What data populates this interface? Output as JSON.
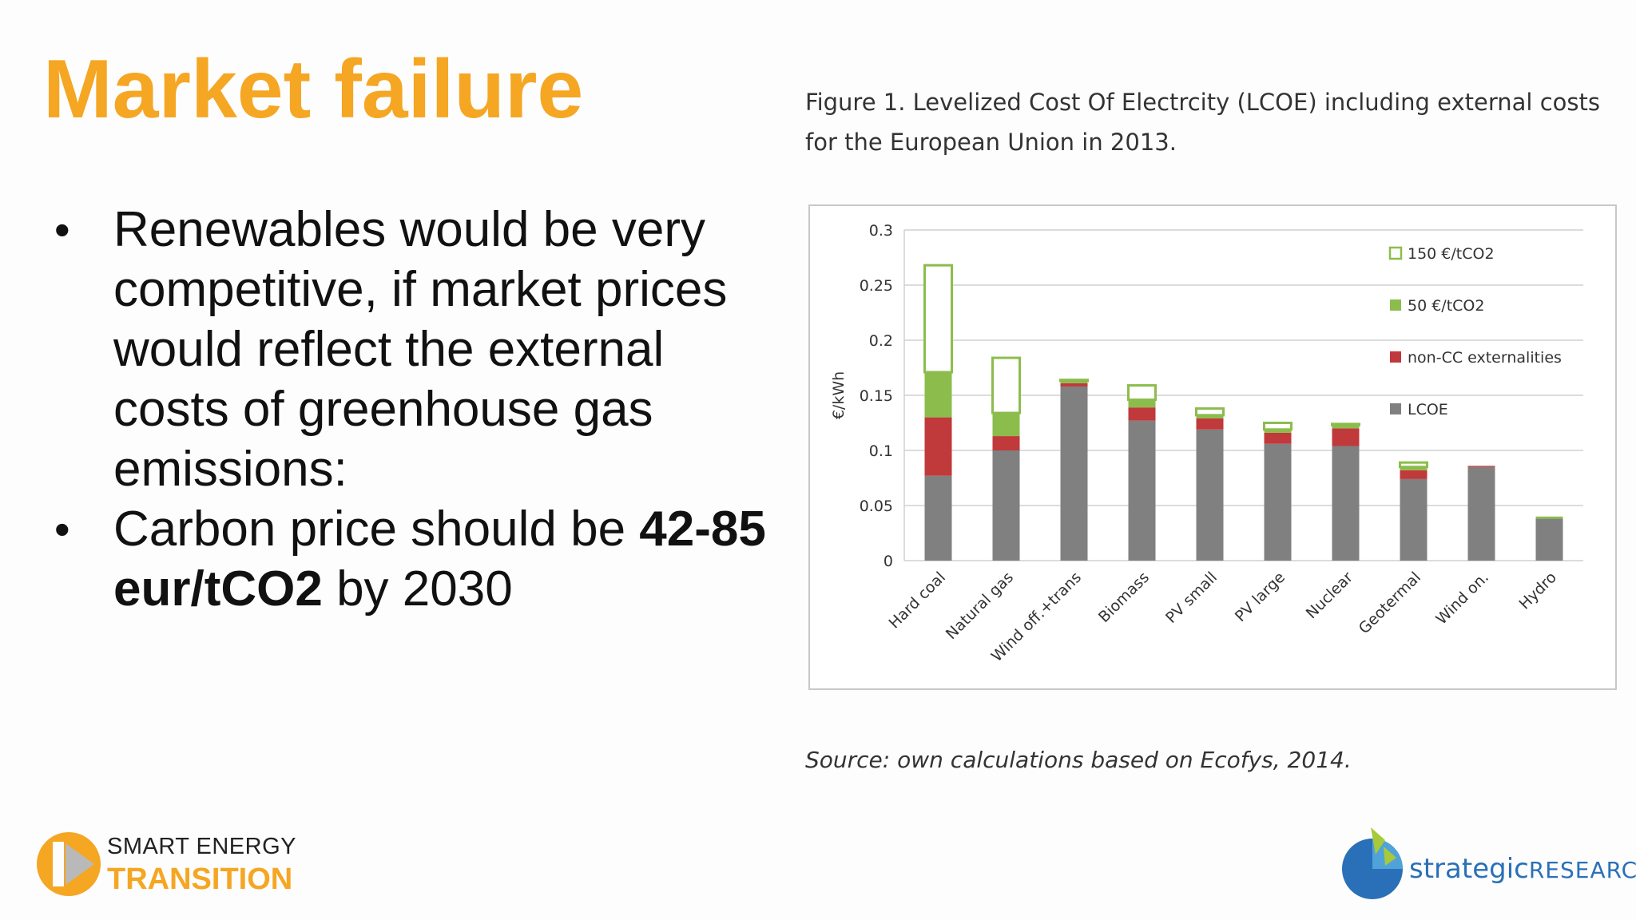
{
  "slide": {
    "title": "Market failure",
    "bullets": [
      {
        "text": "Renewables would be very competitive, if market prices would reflect the external costs of greenhouse gas emissions:"
      },
      {
        "text_before": "Carbon price should be ",
        "bold": "42-85 eur/tCO2",
        "text_after": " by 2030"
      }
    ],
    "figure_caption": "Figure 1. Levelized Cost Of Electrcity (LCOE) including external costs for the European Union in 2013.",
    "figure_source": "Source: own calculations based on Ecofys, 2014."
  },
  "logos": {
    "left": {
      "line1": "SMART ENERGY",
      "line2": "TRANSITION",
      "color": "#f5a623"
    },
    "right": {
      "part1": "strategic",
      "part2": "RESEARCH",
      "color": "#2a70b8"
    }
  },
  "chart_data": {
    "type": "bar",
    "stacked": true,
    "ylabel": "€/kWh",
    "ylim": [
      0,
      0.3
    ],
    "yticks": [
      0,
      0.05,
      0.1,
      0.15,
      0.2,
      0.25,
      0.3
    ],
    "ytick_labels": [
      "0",
      "0.05",
      "0.1",
      "0.15",
      "0.2",
      "0.25",
      "0.3"
    ],
    "grid": true,
    "legend_placement": "top-right",
    "categories": [
      "Hard coal",
      "Natural gas",
      "Wind off.+trans",
      "Biomass",
      "PV small",
      "PV large",
      "Nuclear",
      "Geotermal",
      "Wind on.",
      "Hydro"
    ],
    "series": [
      {
        "name": "LCOE",
        "color": "#808080",
        "fill": "solid",
        "values": [
          0.077,
          0.1,
          0.158,
          0.127,
          0.119,
          0.106,
          0.104,
          0.074,
          0.085,
          0.038
        ]
      },
      {
        "name": "non-CC externalities",
        "color": "#c0393b",
        "fill": "solid",
        "values": [
          0.053,
          0.013,
          0.003,
          0.012,
          0.01,
          0.01,
          0.016,
          0.008,
          0.001,
          0.0
        ]
      },
      {
        "name": "50 €/tCO2",
        "color": "#8cbd4c",
        "fill": "solid",
        "values": [
          0.041,
          0.021,
          0.002,
          0.007,
          0.003,
          0.003,
          0.003,
          0.003,
          0.0,
          0.002
        ]
      },
      {
        "name": "150 €/tCO2",
        "color": "#8cbd4c",
        "fill": "outline",
        "values": [
          0.097,
          0.05,
          0.001,
          0.013,
          0.006,
          0.006,
          0.001,
          0.004,
          0.0,
          0.0
        ]
      }
    ],
    "legend_order": [
      "150 €/tCO2",
      "50 €/tCO2",
      "non-CC externalities",
      "LCOE"
    ]
  }
}
